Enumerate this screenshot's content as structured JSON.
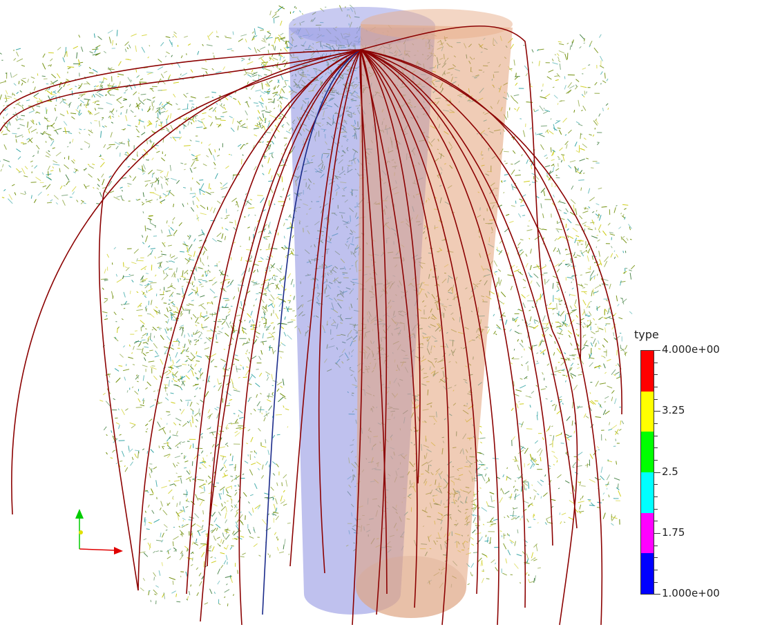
{
  "viewport": {
    "background": "#ffffff"
  },
  "legend": {
    "title": "type",
    "range": [
      1.0,
      4.0
    ],
    "labels": [
      "4.000e+00",
      "3.25",
      "2.5",
      "1.75",
      "1.000e+00"
    ],
    "colors": [
      "#ff0000",
      "#ffff00",
      "#00ff00",
      "#00ffff",
      "#ff00ff",
      "#0000ff"
    ]
  },
  "objects": {
    "cylinders": [
      {
        "name": "blue-cylinder",
        "color": "#8a8ee0"
      },
      {
        "name": "orange-cylinder",
        "color": "#e3a27a"
      }
    ],
    "root_colors": {
      "primary": "#8b0000",
      "secondary": "#6a8a00",
      "fine": "#2aa0a0"
    }
  },
  "axes": {
    "x_color": "#e00000",
    "y_color": "#00cc00",
    "z_color": "#e0e000"
  }
}
